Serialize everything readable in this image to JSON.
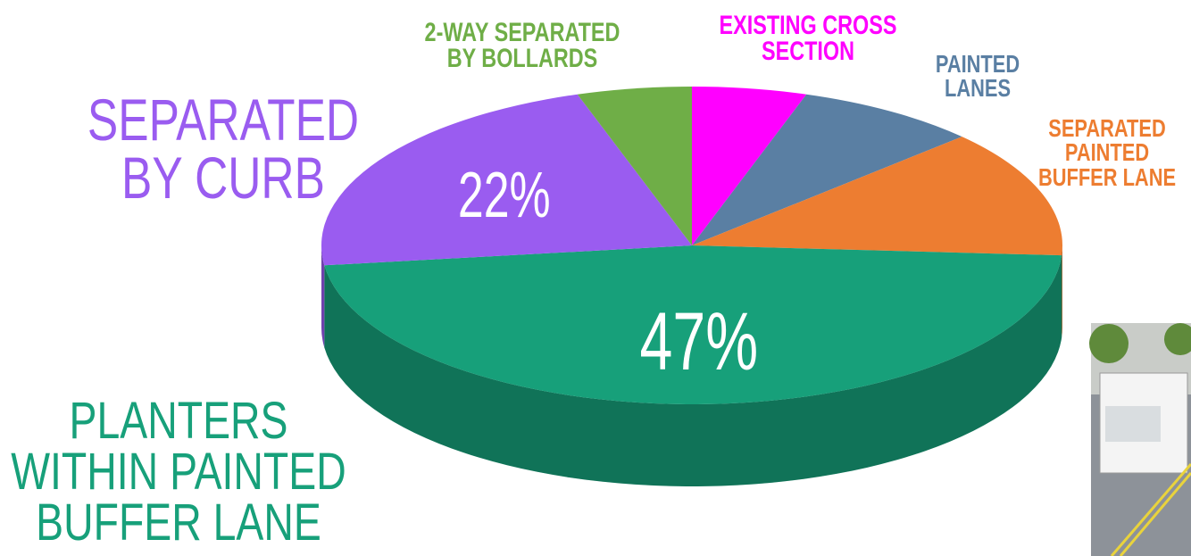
{
  "chart_data": {
    "type": "pie",
    "categories": [
      "EXISTING CROSS SECTION",
      "PAINTED LANES",
      "SEPARATED PAINTED BUFFER LANE",
      "PLANTERS WITHIN PAINTED BUFFER LANE",
      "SEPARATED BY CURB",
      "2-WAY SEPARATED BY BOLLARDS"
    ],
    "values": [
      5,
      8,
      13,
      47,
      22,
      5
    ],
    "value_labels": [
      null,
      null,
      null,
      "47%",
      "22%",
      null
    ],
    "colors": [
      "#ff00ff",
      "#5a7fa3",
      "#ed7d31",
      "#17a07a",
      "#9a5cf0",
      "#6fae47"
    ]
  }
}
